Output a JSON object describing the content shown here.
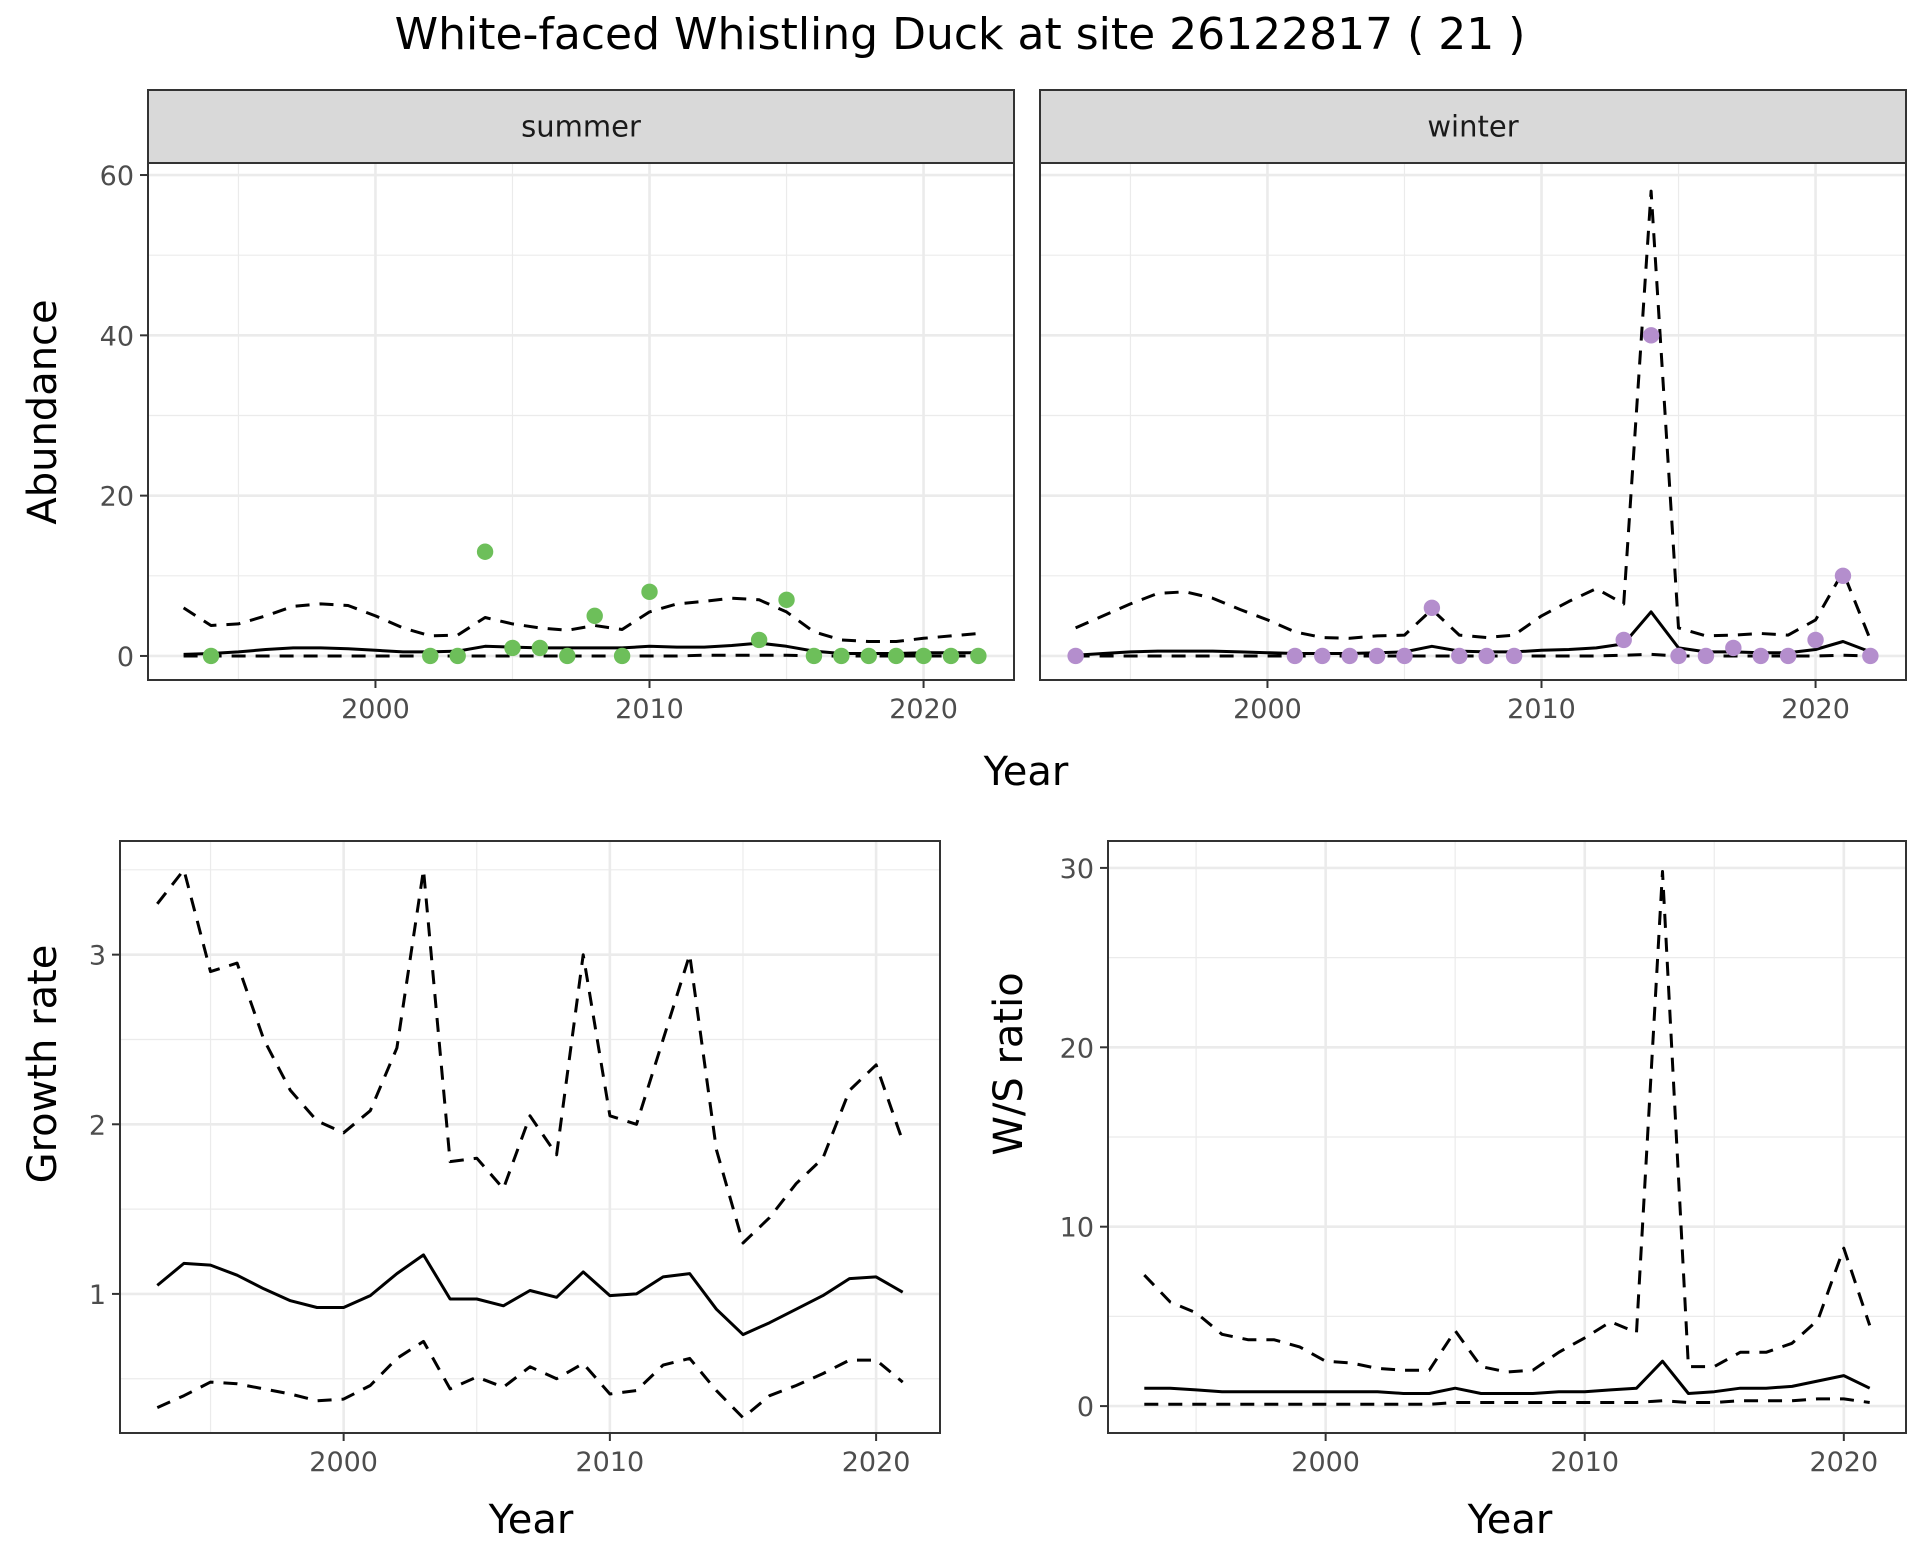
{
  "title": "White-faced Whistling Duck at site 26122817 ( 21 )",
  "colors": {
    "summer_points": "#6dbf5a",
    "winter_points": "#b48ecd",
    "strip_bg": "#d9d9d9",
    "grid": "#ebebeb",
    "line": "#000000"
  },
  "chart_data": [
    {
      "type": "line",
      "panel": "summer",
      "strip": "summer",
      "xlabel": "Year",
      "ylabel": "Abundance",
      "xlim": [
        1991.7,
        2023.3
      ],
      "ylim": [
        -3.0,
        61.5
      ],
      "xticks": [
        2000,
        2010,
        2020
      ],
      "yticks": [
        0,
        20,
        40,
        60
      ],
      "grid": true,
      "series": [
        {
          "role": "mean",
          "style": "solid",
          "x": [
            1993,
            1994,
            1995,
            1996,
            1997,
            1998,
            1999,
            2000,
            2001,
            2002,
            2003,
            2004,
            2005,
            2006,
            2007,
            2008,
            2009,
            2010,
            2011,
            2012,
            2013,
            2014,
            2015,
            2016,
            2017,
            2018,
            2019,
            2020,
            2021,
            2022
          ],
          "y": [
            0.2,
            0.3,
            0.5,
            0.8,
            1.0,
            1.0,
            0.9,
            0.7,
            0.5,
            0.5,
            0.6,
            1.2,
            1.1,
            1.0,
            1.0,
            1.0,
            1.0,
            1.2,
            1.1,
            1.1,
            1.3,
            1.6,
            1.2,
            0.6,
            0.3,
            0.3,
            0.3,
            0.4,
            0.4,
            0.4
          ]
        },
        {
          "role": "upper",
          "style": "dashed",
          "x": [
            1993,
            1994,
            1995,
            1996,
            1997,
            1998,
            1999,
            2000,
            2001,
            2002,
            2003,
            2004,
            2005,
            2006,
            2007,
            2008,
            2009,
            2010,
            2011,
            2012,
            2013,
            2014,
            2015,
            2016,
            2017,
            2018,
            2019,
            2020,
            2021,
            2022
          ],
          "y": [
            6.0,
            3.8,
            4.0,
            5.0,
            6.2,
            6.5,
            6.3,
            5.0,
            3.5,
            2.5,
            2.6,
            4.8,
            4.0,
            3.5,
            3.2,
            3.8,
            3.3,
            5.5,
            6.5,
            6.8,
            7.2,
            7.0,
            5.5,
            3.0,
            2.0,
            1.8,
            1.8,
            2.2,
            2.5,
            2.8
          ]
        },
        {
          "role": "lower",
          "style": "dashed",
          "x": [
            1993,
            1994,
            1995,
            1996,
            1997,
            1998,
            1999,
            2000,
            2001,
            2002,
            2003,
            2004,
            2005,
            2006,
            2007,
            2008,
            2009,
            2010,
            2011,
            2012,
            2013,
            2014,
            2015,
            2016,
            2017,
            2018,
            2019,
            2020,
            2021,
            2022
          ],
          "y": [
            0,
            0,
            0,
            0,
            0,
            0,
            0,
            0,
            0,
            0,
            0,
            0,
            0,
            0,
            0,
            0,
            0,
            0,
            0,
            0.1,
            0.1,
            0.1,
            0.1,
            0,
            0,
            0,
            0,
            0,
            0,
            0
          ]
        }
      ],
      "points": {
        "x": [
          1994,
          2002,
          2003,
          2004,
          2005,
          2006,
          2007,
          2008,
          2009,
          2010,
          2014,
          2015,
          2016,
          2017,
          2018,
          2019,
          2020,
          2021,
          2022
        ],
        "y": [
          0,
          0,
          0,
          13,
          1,
          1,
          0,
          5,
          0,
          8,
          2,
          7,
          0,
          0,
          0,
          0,
          0,
          0,
          0
        ]
      }
    },
    {
      "type": "line",
      "panel": "winter",
      "strip": "winter",
      "xlabel": "Year",
      "ylabel": "Abundance",
      "xlim": [
        1991.7,
        2023.3
      ],
      "ylim": [
        -3.0,
        61.5
      ],
      "xticks": [
        2000,
        2010,
        2020
      ],
      "yticks": [
        0,
        20,
        40,
        60
      ],
      "grid": true,
      "series": [
        {
          "role": "mean",
          "style": "solid",
          "x": [
            1993,
            1994,
            1995,
            1996,
            1997,
            1998,
            1999,
            2000,
            2001,
            2002,
            2003,
            2004,
            2005,
            2006,
            2007,
            2008,
            2009,
            2010,
            2011,
            2012,
            2013,
            2014,
            2015,
            2016,
            2017,
            2018,
            2019,
            2020,
            2021,
            2022
          ],
          "y": [
            0.1,
            0.3,
            0.5,
            0.6,
            0.6,
            0.6,
            0.5,
            0.4,
            0.3,
            0.3,
            0.3,
            0.4,
            0.5,
            1.2,
            0.6,
            0.5,
            0.5,
            0.7,
            0.8,
            1.0,
            1.5,
            5.5,
            1.0,
            0.5,
            0.5,
            0.4,
            0.4,
            0.8,
            1.8,
            0.5
          ]
        },
        {
          "role": "upper",
          "style": "dashed",
          "x": [
            1993,
            1994,
            1995,
            1996,
            1997,
            1998,
            1999,
            2000,
            2001,
            2002,
            2003,
            2004,
            2005,
            2006,
            2007,
            2008,
            2009,
            2010,
            2011,
            2012,
            2013,
            2014,
            2015,
            2016,
            2017,
            2018,
            2019,
            2020,
            2021,
            2022
          ],
          "y": [
            3.5,
            5.0,
            6.5,
            7.8,
            8.0,
            7.2,
            5.8,
            4.5,
            3.0,
            2.3,
            2.2,
            2.5,
            2.6,
            5.8,
            2.6,
            2.3,
            2.6,
            5.0,
            6.8,
            8.4,
            6.5,
            58.0,
            3.5,
            2.5,
            2.6,
            2.8,
            2.6,
            4.5,
            10.5,
            2.0
          ]
        },
        {
          "role": "lower",
          "style": "dashed",
          "x": [
            1993,
            1994,
            1995,
            1996,
            1997,
            1998,
            1999,
            2000,
            2001,
            2002,
            2003,
            2004,
            2005,
            2006,
            2007,
            2008,
            2009,
            2010,
            2011,
            2012,
            2013,
            2014,
            2015,
            2016,
            2017,
            2018,
            2019,
            2020,
            2021,
            2022
          ],
          "y": [
            0,
            0,
            0,
            0,
            0,
            0,
            0,
            0,
            0,
            0,
            0,
            0,
            0,
            0,
            0,
            0,
            0,
            0,
            0,
            0,
            0.1,
            0.2,
            0,
            0,
            0,
            0,
            0,
            0,
            0.1,
            0
          ]
        }
      ],
      "points": {
        "x": [
          1993,
          2001,
          2002,
          2003,
          2004,
          2005,
          2006,
          2007,
          2008,
          2009,
          2013,
          2014,
          2015,
          2016,
          2017,
          2018,
          2019,
          2020,
          2021,
          2022
        ],
        "y": [
          0,
          0,
          0,
          0,
          0,
          0,
          6,
          0,
          0,
          0,
          2,
          40,
          0,
          0,
          1,
          0,
          0,
          2,
          10,
          0
        ]
      }
    },
    {
      "type": "line",
      "panel": "growth",
      "xlabel": "Year",
      "ylabel": "Growth rate",
      "xlim": [
        1991.6,
        2022.4
      ],
      "ylim": [
        0.18,
        3.67
      ],
      "xticks": [
        2000,
        2010,
        2020
      ],
      "yticks": [
        1,
        2,
        3
      ],
      "grid": true,
      "series": [
        {
          "role": "mean",
          "style": "solid",
          "x": [
            1993,
            1994,
            1995,
            1996,
            1997,
            1998,
            1999,
            2000,
            2001,
            2002,
            2003,
            2004,
            2005,
            2006,
            2007,
            2008,
            2009,
            2010,
            2011,
            2012,
            2013,
            2014,
            2015,
            2016,
            2017,
            2018,
            2019,
            2020,
            2021
          ],
          "y": [
            1.05,
            1.18,
            1.17,
            1.11,
            1.03,
            0.96,
            0.92,
            0.92,
            0.99,
            1.12,
            1.23,
            0.97,
            0.97,
            0.93,
            1.02,
            0.98,
            1.13,
            0.99,
            1.0,
            1.1,
            1.12,
            0.91,
            0.76,
            0.83,
            0.91,
            0.99,
            1.09,
            1.1,
            1.01
          ]
        },
        {
          "role": "upper",
          "style": "dashed",
          "x": [
            1993,
            1994,
            1995,
            1996,
            1997,
            1998,
            1999,
            2000,
            2001,
            2002,
            2003,
            2004,
            2005,
            2006,
            2007,
            2008,
            2009,
            2010,
            2011,
            2012,
            2013,
            2014,
            2015,
            2016,
            2017,
            2018,
            2019,
            2020,
            2021
          ],
          "y": [
            3.3,
            3.5,
            2.9,
            2.95,
            2.5,
            2.2,
            2.02,
            1.95,
            2.08,
            2.45,
            3.5,
            1.78,
            1.8,
            1.62,
            2.05,
            1.82,
            3.0,
            2.05,
            2.0,
            2.5,
            3.0,
            1.85,
            1.3,
            1.45,
            1.65,
            1.8,
            2.2,
            2.35,
            1.9
          ]
        },
        {
          "role": "lower",
          "style": "dashed",
          "x": [
            1993,
            1994,
            1995,
            1996,
            1997,
            1998,
            1999,
            2000,
            2001,
            2002,
            2003,
            2004,
            2005,
            2006,
            2007,
            2008,
            2009,
            2010,
            2011,
            2012,
            2013,
            2014,
            2015,
            2016,
            2017,
            2018,
            2019,
            2020,
            2021
          ],
          "y": [
            0.33,
            0.4,
            0.48,
            0.47,
            0.44,
            0.41,
            0.37,
            0.38,
            0.46,
            0.62,
            0.72,
            0.44,
            0.51,
            0.45,
            0.57,
            0.5,
            0.59,
            0.41,
            0.43,
            0.58,
            0.62,
            0.43,
            0.27,
            0.4,
            0.46,
            0.53,
            0.61,
            0.61,
            0.48
          ]
        }
      ]
    },
    {
      "type": "line",
      "panel": "ratio",
      "xlabel": "Year",
      "ylabel": "W/S ratio",
      "xlim": [
        1991.6,
        2022.4
      ],
      "ylim": [
        -1.5,
        31.5
      ],
      "xticks": [
        2000,
        2010,
        2020
      ],
      "yticks": [
        0,
        10,
        20,
        30
      ],
      "grid": true,
      "series": [
        {
          "role": "mean",
          "style": "solid",
          "x": [
            1993,
            1994,
            1995,
            1996,
            1997,
            1998,
            1999,
            2000,
            2001,
            2002,
            2003,
            2004,
            2005,
            2006,
            2007,
            2008,
            2009,
            2010,
            2011,
            2012,
            2013,
            2014,
            2015,
            2016,
            2017,
            2018,
            2019,
            2020,
            2021
          ],
          "y": [
            1.0,
            1.0,
            0.9,
            0.8,
            0.8,
            0.8,
            0.8,
            0.8,
            0.8,
            0.8,
            0.7,
            0.7,
            1.0,
            0.7,
            0.7,
            0.7,
            0.8,
            0.8,
            0.9,
            1.0,
            2.5,
            0.7,
            0.8,
            1.0,
            1.0,
            1.1,
            1.4,
            1.7,
            1.0
          ]
        },
        {
          "role": "upper",
          "style": "dashed",
          "x": [
            1993,
            1994,
            1995,
            1996,
            1997,
            1998,
            1999,
            2000,
            2001,
            2002,
            2003,
            2004,
            2005,
            2006,
            2007,
            2008,
            2009,
            2010,
            2011,
            2012,
            2013,
            2014,
            2015,
            2016,
            2017,
            2018,
            2019,
            2020,
            2021
          ],
          "y": [
            7.3,
            5.8,
            5.2,
            4.0,
            3.7,
            3.7,
            3.3,
            2.5,
            2.4,
            2.1,
            2.0,
            2.0,
            4.2,
            2.2,
            1.9,
            2.0,
            3.0,
            3.8,
            4.7,
            4.1,
            29.8,
            2.2,
            2.2,
            3.0,
            3.0,
            3.5,
            4.8,
            8.8,
            4.5
          ]
        },
        {
          "role": "lower",
          "style": "dashed",
          "x": [
            1993,
            1994,
            1995,
            1996,
            1997,
            1998,
            1999,
            2000,
            2001,
            2002,
            2003,
            2004,
            2005,
            2006,
            2007,
            2008,
            2009,
            2010,
            2011,
            2012,
            2013,
            2014,
            2015,
            2016,
            2017,
            2018,
            2019,
            2020,
            2021
          ],
          "y": [
            0.1,
            0.1,
            0.1,
            0.1,
            0.1,
            0.1,
            0.1,
            0.1,
            0.1,
            0.1,
            0.1,
            0.1,
            0.2,
            0.2,
            0.2,
            0.2,
            0.2,
            0.2,
            0.2,
            0.2,
            0.3,
            0.2,
            0.2,
            0.3,
            0.3,
            0.3,
            0.4,
            0.4,
            0.2
          ]
        }
      ]
    }
  ]
}
